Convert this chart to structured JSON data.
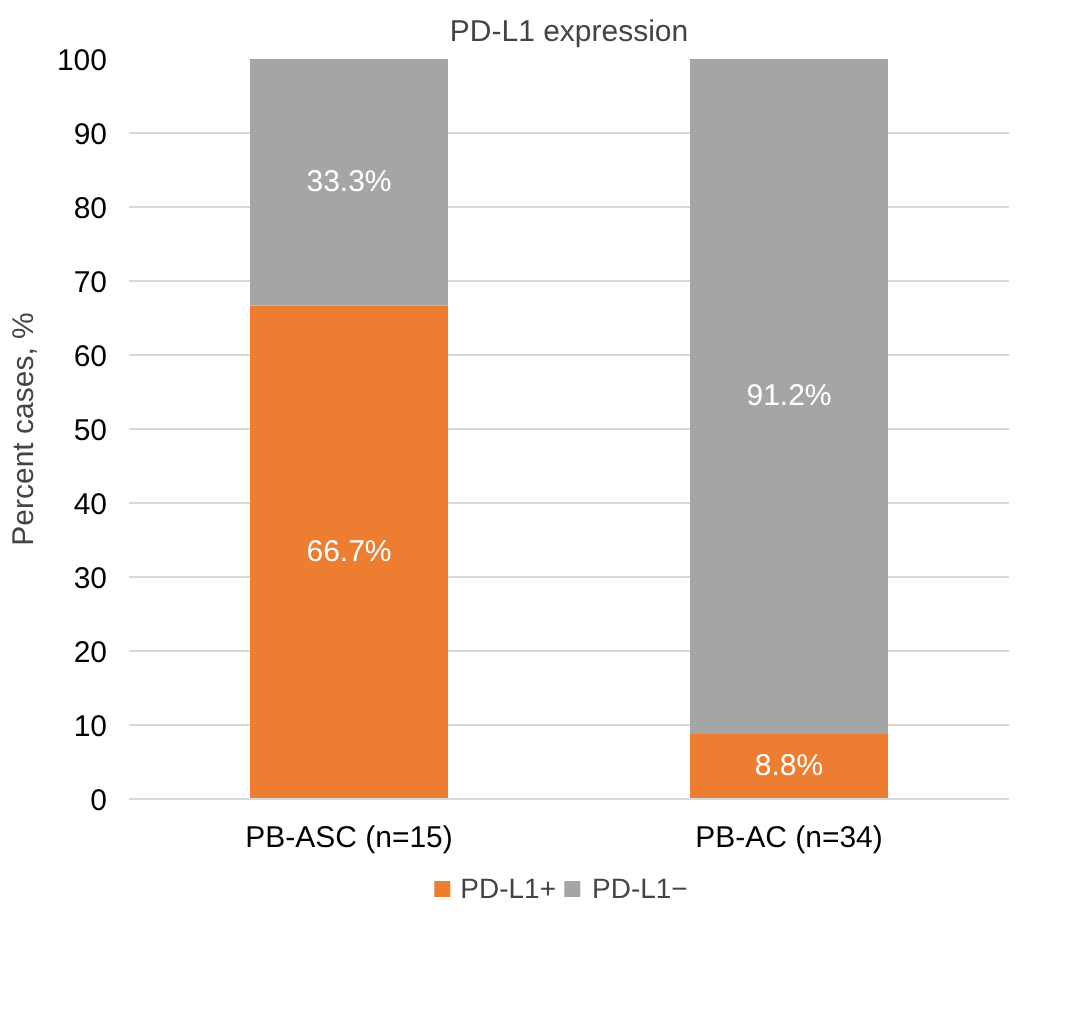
{
  "chart_data": {
    "type": "bar",
    "title": "PD-L1 expression",
    "ylabel": "Percent cases, %",
    "categories": [
      "PB-ASC (n=15)",
      "PB-AC (n=34)"
    ],
    "stacked": true,
    "series": [
      {
        "name": "PD-L1+",
        "color": "#ed7d31",
        "values": [
          66.7,
          8.8
        ],
        "value_labels": [
          "66.7%",
          "8.8%"
        ]
      },
      {
        "name": "PD-L1−",
        "color": "#a5a5a5",
        "values": [
          33.3,
          91.2
        ],
        "value_labels": [
          "33.3%",
          "91.2%"
        ]
      }
    ],
    "ylim": [
      0,
      100
    ],
    "yticks": [
      0,
      10,
      20,
      30,
      40,
      50,
      60,
      70,
      80,
      90,
      100
    ],
    "grid": "y",
    "legend": "bottom"
  }
}
